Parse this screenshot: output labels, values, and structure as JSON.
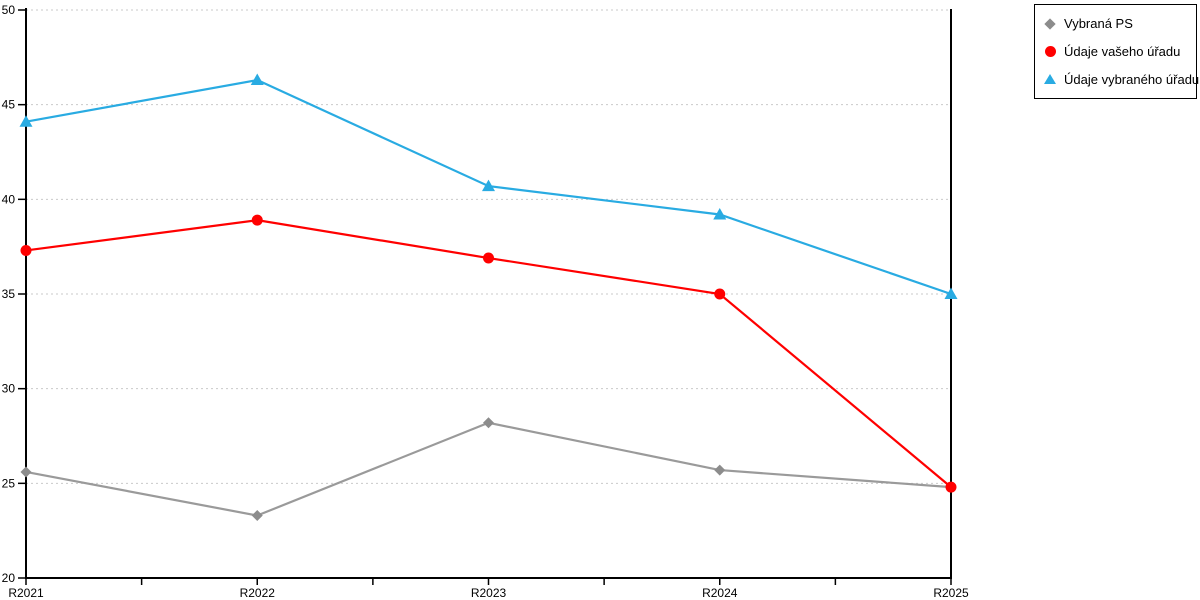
{
  "chart_data": {
    "type": "line",
    "title": "",
    "xlabel": "",
    "ylabel": "",
    "categories": [
      "R2021",
      "R2022",
      "R2023",
      "R2024",
      "R2025"
    ],
    "series": [
      {
        "name": "Vybraná PS",
        "marker": "diamond",
        "color": "#8C8C8C",
        "line_color": "#9A9A9A",
        "values": [
          25.6,
          23.3,
          28.2,
          25.7,
          24.8
        ]
      },
      {
        "name": "Údaje vašeho úřadu",
        "marker": "circle",
        "color": "#FF0000",
        "line_color": "#FF0000",
        "values": [
          37.3,
          38.9,
          36.9,
          35.0,
          24.8
        ]
      },
      {
        "name": "Údaje vybraného úřadu",
        "marker": "triangle",
        "color": "#29ABE2",
        "line_color": "#29ABE2",
        "values": [
          44.1,
          46.3,
          40.7,
          39.2,
          35.0
        ]
      }
    ],
    "ylim": [
      20,
      50
    ],
    "yticks": [
      20,
      25,
      30,
      35,
      40,
      45,
      50
    ],
    "grid": "horizontal-dashed",
    "gridline_color": "#C9C9C9",
    "axis_color": "#000000",
    "legend_position": "outside-top-right"
  }
}
